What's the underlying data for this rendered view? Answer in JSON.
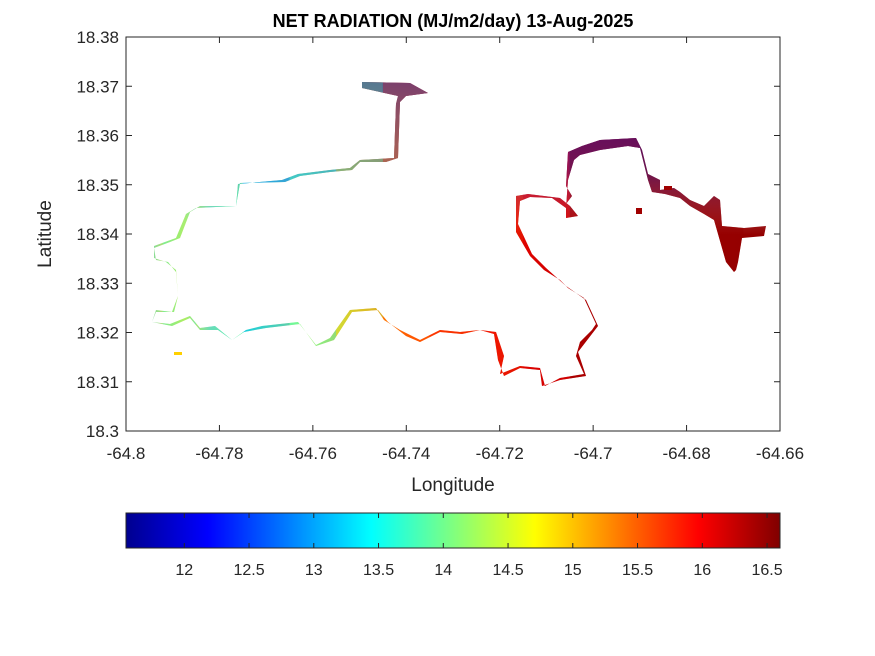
{
  "chart_data": {
    "type": "heatmap",
    "title": "NET RADIATION (MJ/m2/day) 13-Aug-2025",
    "xlabel": "Longitude",
    "ylabel": "Latitude",
    "xlim": [
      -64.8,
      -64.66
    ],
    "ylim": [
      18.3,
      18.38
    ],
    "x_ticks": [
      "-64.8",
      "-64.78",
      "-64.76",
      "-64.74",
      "-64.72",
      "-64.7",
      "-64.68",
      "-64.66"
    ],
    "y_ticks": [
      "18.3",
      "18.31",
      "18.32",
      "18.33",
      "18.34",
      "18.35",
      "18.36",
      "18.37",
      "18.38"
    ],
    "grid": false,
    "colormap": "jet",
    "colorbar": {
      "orientation": "horizontal",
      "position": "bottom",
      "range": [
        11.55,
        16.6
      ],
      "ticks": [
        "12",
        "12.5",
        "13",
        "13.5",
        "14",
        "14.5",
        "15",
        "15.5",
        "16",
        "16.5"
      ]
    },
    "bands": [
      {
        "longitude": -64.79,
        "value": 13.8
      },
      {
        "longitude": -64.78,
        "value": 14.2
      },
      {
        "longitude": -64.77,
        "value": 13.0
      },
      {
        "longitude": -64.76,
        "value": 13.6
      },
      {
        "longitude": -64.75,
        "value": 14.3
      },
      {
        "longitude": -64.74,
        "value": 15.3
      },
      {
        "longitude": -64.73,
        "value": 15.6
      },
      {
        "longitude": -64.72,
        "value": 15.8
      },
      {
        "longitude": -64.71,
        "value": 16.0
      },
      {
        "longitude": -64.7,
        "value": 16.4
      },
      {
        "longitude": -64.68,
        "value": 16.5
      },
      {
        "longitude": -64.67,
        "value": 16.5
      }
    ]
  }
}
